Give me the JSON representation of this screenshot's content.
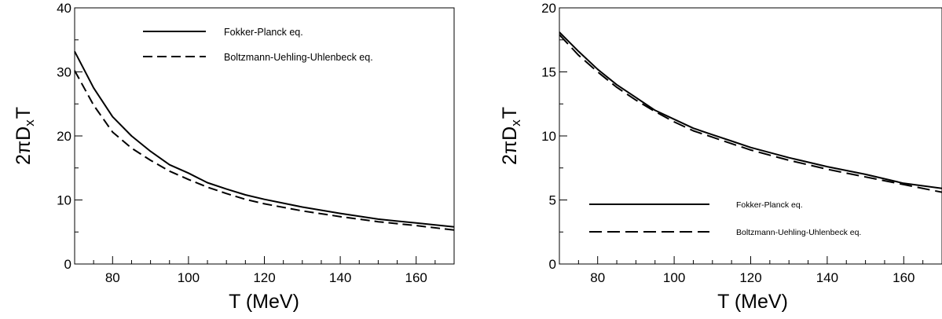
{
  "chart_data": [
    {
      "type": "line",
      "title": "",
      "xlabel": "T (MeV)",
      "ylabel_parts": [
        "2",
        "π",
        "D",
        "x",
        "T"
      ],
      "xlim": [
        70,
        170
      ],
      "ylim": [
        0,
        40
      ],
      "xticks": [
        80,
        100,
        120,
        140,
        160
      ],
      "yticks": [
        0,
        10,
        20,
        30,
        40
      ],
      "grid": false,
      "legend_position": "top-right",
      "series": [
        {
          "name": "Fokker-Planck eq.",
          "style": "solid",
          "x": [
            70,
            75,
            80,
            85,
            90,
            95,
            100,
            105,
            110,
            115,
            120,
            130,
            140,
            150,
            160,
            170
          ],
          "y": [
            33.2,
            27.5,
            23.0,
            20.0,
            17.6,
            15.5,
            14.2,
            12.7,
            11.7,
            10.8,
            10.1,
            8.9,
            7.9,
            7.0,
            6.4,
            5.8
          ]
        },
        {
          "name": "Boltzmann-Uehling-Uhlenbeck eq.",
          "style": "dashed",
          "x": [
            70,
            75,
            80,
            85,
            90,
            95,
            100,
            105,
            110,
            115,
            120,
            130,
            140,
            150,
            160,
            170
          ],
          "y": [
            30.2,
            24.8,
            20.6,
            18.1,
            16.2,
            14.5,
            13.2,
            12.0,
            11.0,
            10.1,
            9.4,
            8.3,
            7.4,
            6.6,
            6.0,
            5.3
          ]
        }
      ]
    },
    {
      "type": "line",
      "title": "",
      "xlabel": "T (MeV)",
      "ylabel_parts": [
        "2",
        "π",
        "D",
        "x",
        "T"
      ],
      "xlim": [
        70,
        170
      ],
      "ylim": [
        0,
        20
      ],
      "xticks": [
        80,
        100,
        120,
        140,
        160
      ],
      "yticks": [
        0,
        5,
        10,
        15,
        20
      ],
      "grid": false,
      "legend_position": "bottom-left",
      "series": [
        {
          "name": "Fokker-Planck eq.",
          "style": "solid",
          "x": [
            70,
            75,
            80,
            85,
            90,
            95,
            100,
            105,
            110,
            115,
            120,
            130,
            140,
            150,
            160,
            170
          ],
          "y": [
            18.1,
            16.6,
            15.2,
            14.0,
            13.0,
            12.0,
            11.3,
            10.6,
            10.1,
            9.6,
            9.1,
            8.3,
            7.6,
            7.0,
            6.3,
            5.9
          ]
        },
        {
          "name": "Boltzmann-Uehling-Uhlenbeck eq.",
          "style": "dashed",
          "x": [
            70,
            75,
            80,
            85,
            90,
            95,
            100,
            105,
            110,
            115,
            120,
            130,
            140,
            150,
            160,
            170
          ],
          "y": [
            17.9,
            16.3,
            15.0,
            13.8,
            12.8,
            11.9,
            11.1,
            10.4,
            9.9,
            9.4,
            8.9,
            8.1,
            7.4,
            6.8,
            6.2,
            5.6
          ]
        }
      ]
    }
  ]
}
